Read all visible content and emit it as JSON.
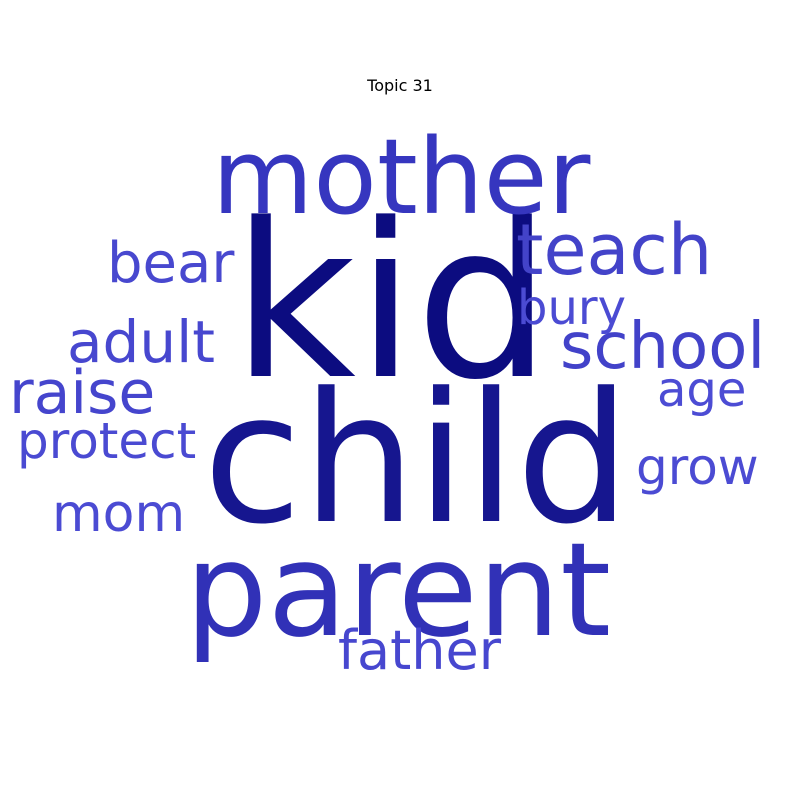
{
  "title": "Topic 31",
  "words": [
    {
      "text": "kid",
      "color": "#0c0c80"
    },
    {
      "text": "child",
      "color": "#16168f"
    },
    {
      "text": "mother",
      "color": "#3636bf"
    },
    {
      "text": "parent",
      "color": "#3131b7"
    },
    {
      "text": "teach",
      "color": "#4343c9"
    },
    {
      "text": "school",
      "color": "#4242c9"
    },
    {
      "text": "bear",
      "color": "#4848cf"
    },
    {
      "text": "adult",
      "color": "#4747cf"
    },
    {
      "text": "raise",
      "color": "#4545cd"
    },
    {
      "text": "bury",
      "color": "#4b4bd3"
    },
    {
      "text": "protect",
      "color": "#4a4ad2"
    },
    {
      "text": "age",
      "color": "#4c4cd4"
    },
    {
      "text": "grow",
      "color": "#4b4bd3"
    },
    {
      "text": "mom",
      "color": "#4b4bd3"
    },
    {
      "text": "father",
      "color": "#4747cf"
    }
  ]
}
